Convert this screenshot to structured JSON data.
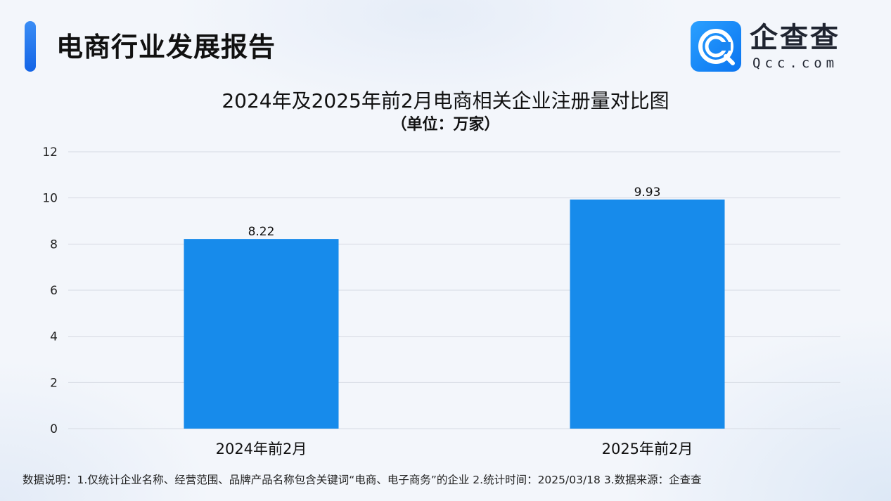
{
  "header": {
    "title": "电商行业发展报告",
    "logo": {
      "name_cn": "企查查",
      "name_en": "Qcc.com",
      "icon": "qcc-logo-icon",
      "brand_color": "#1a8cf0"
    }
  },
  "chart_data": {
    "type": "bar",
    "title": "2024年及2025年前2月电商相关企业注册量对比图",
    "subtitle": "（单位：万家）",
    "categories": [
      "2024年前2月",
      "2025年前2月"
    ],
    "values": [
      8.22,
      9.93
    ],
    "value_labels": [
      "8.22",
      "9.93"
    ],
    "ylim": [
      0,
      12
    ],
    "yticks": [
      0,
      2,
      4,
      6,
      8,
      10,
      12
    ],
    "grid": true,
    "bar_color": "#178beb"
  },
  "footnote": "数据说明：1.仅统计企业名称、经营范围、品牌产品名称包含关键词“电商、电子商务”的企业   2.统计时间：2025/03/18    3.数据来源：企查查"
}
